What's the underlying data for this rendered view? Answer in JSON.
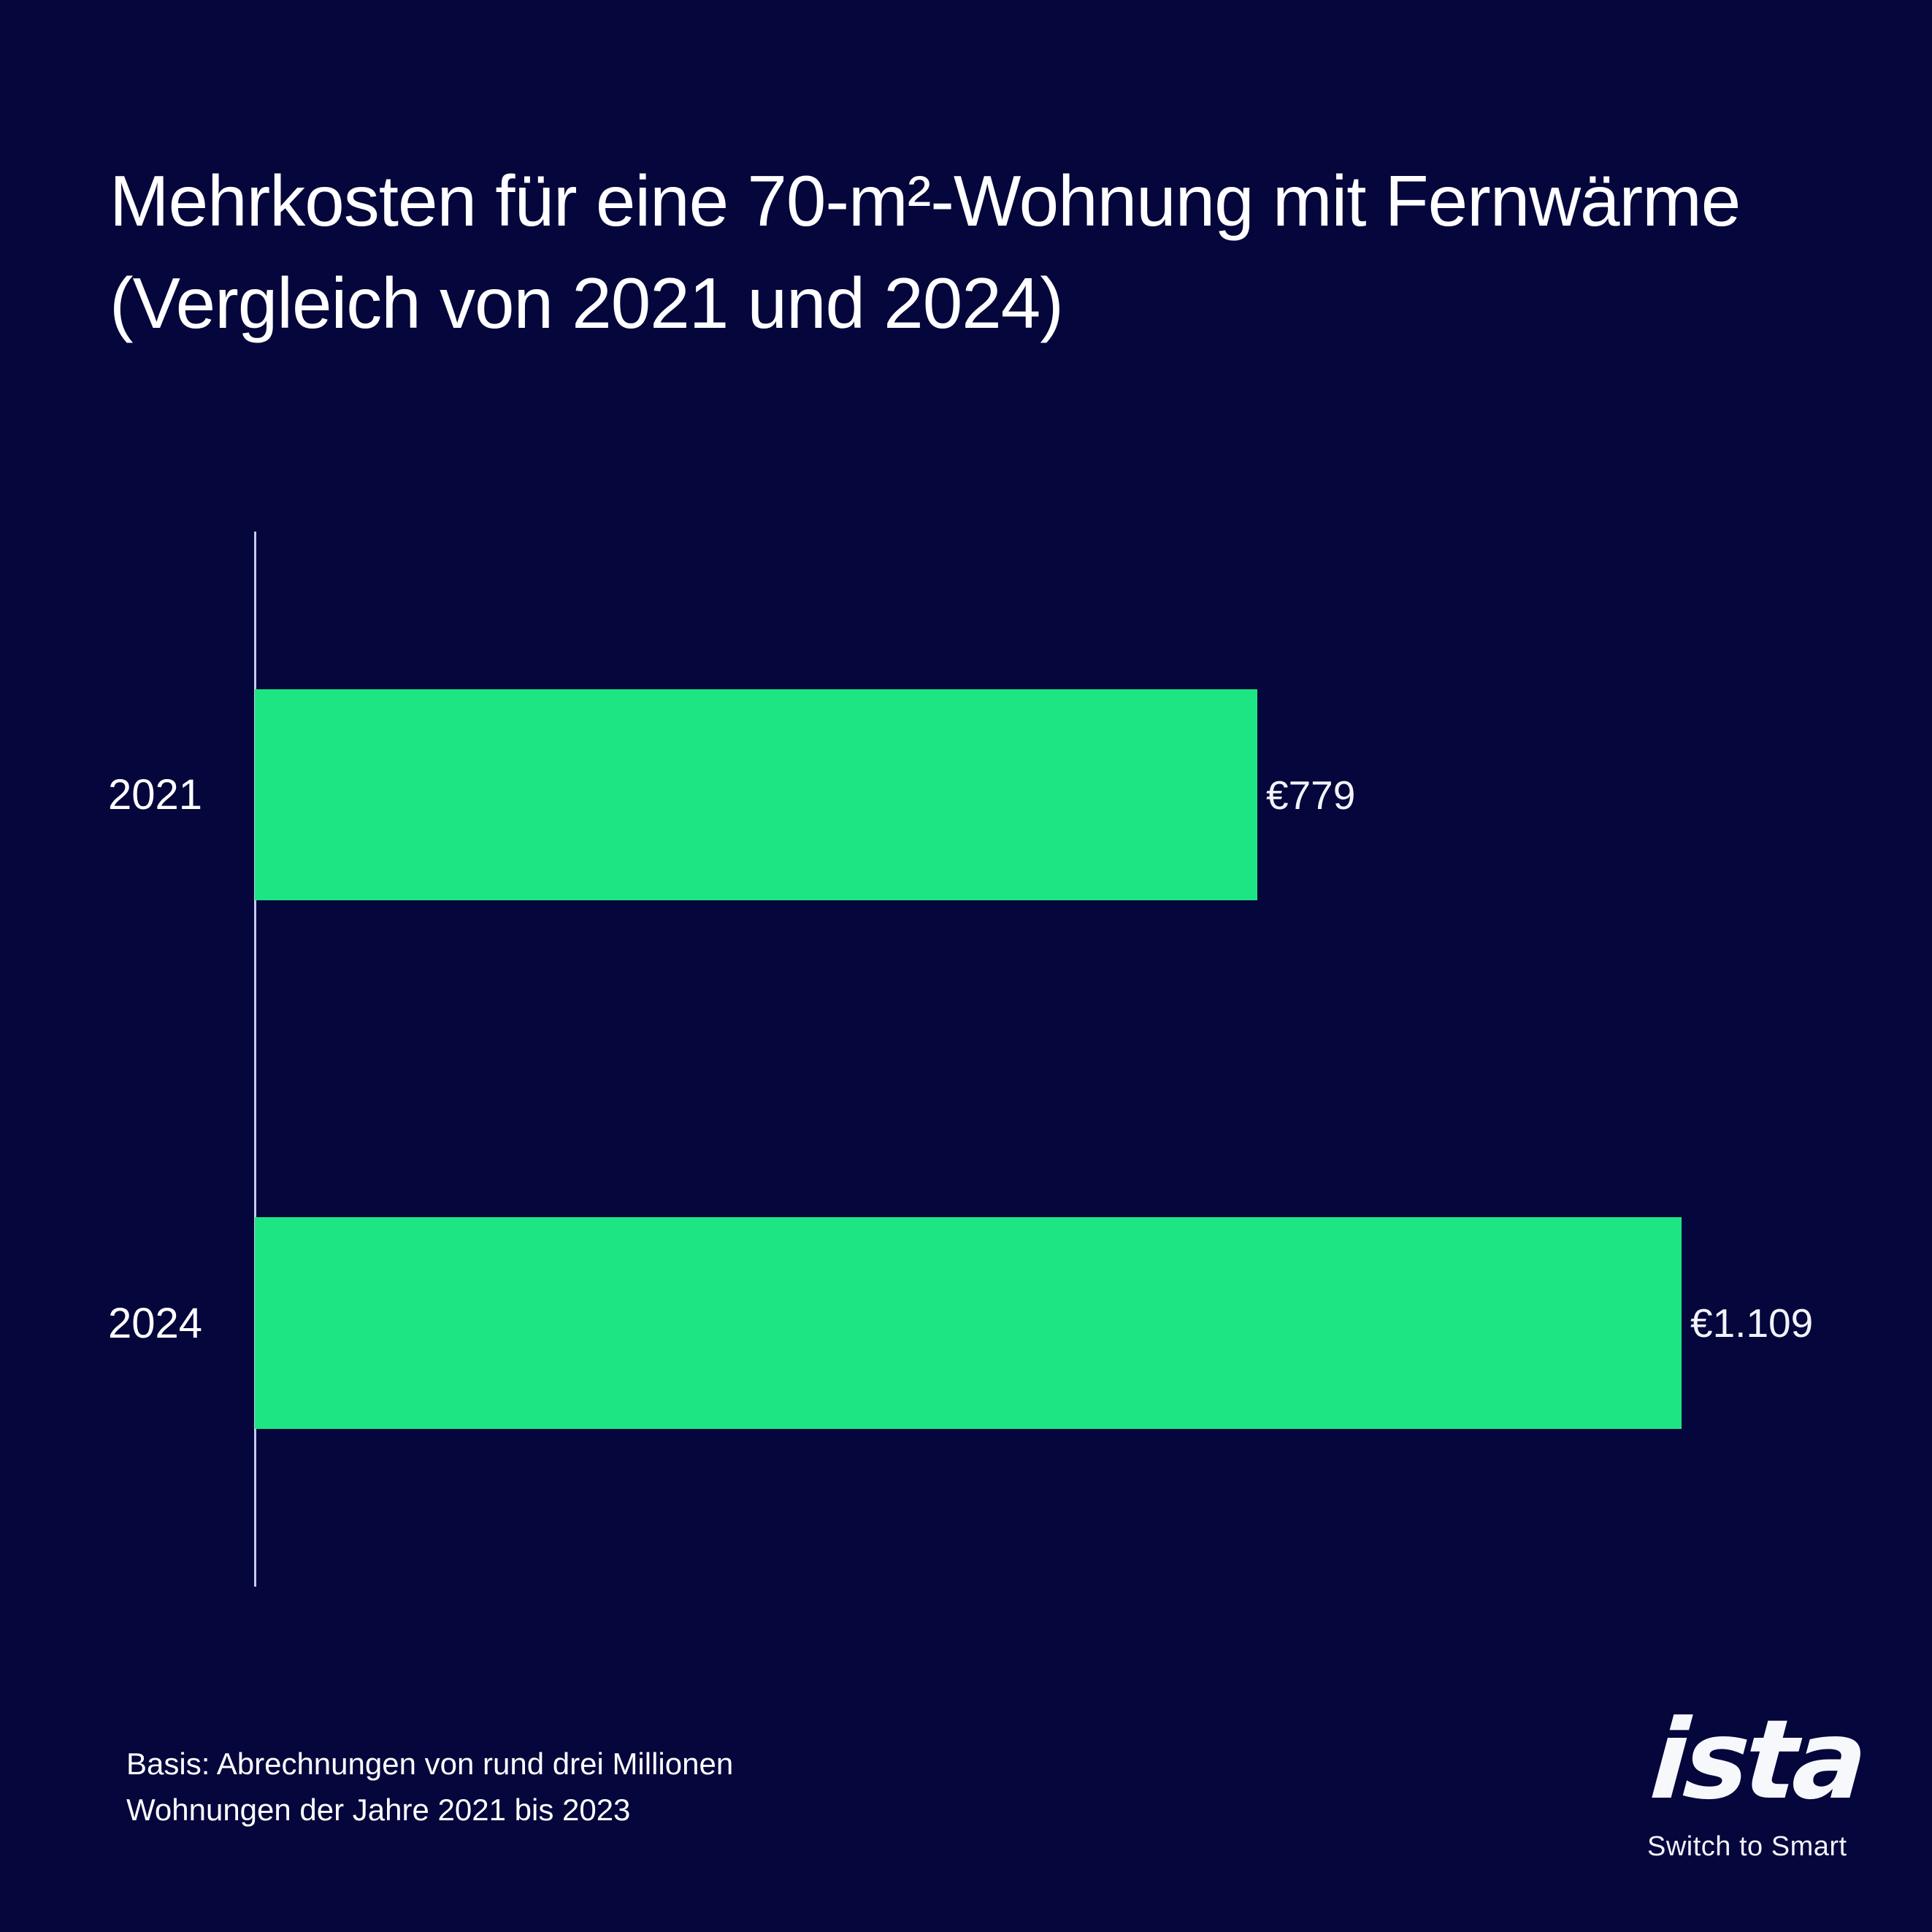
{
  "header": {
    "title_line1": "Mehrkosten für eine 70-m²-Wohnung mit Fernwärme",
    "title_line2": "(Vergleich von 2021 und 2024)"
  },
  "chart_data": {
    "type": "bar",
    "orientation": "horizontal",
    "title": "Mehrkosten für eine 70-m²-Wohnung mit Fernwärme (Vergleich von 2021 und 2024)",
    "categories": [
      "2021",
      "2024"
    ],
    "values": [
      779,
      1109
    ],
    "value_labels": [
      "€779",
      "€1.109"
    ],
    "unit": "EUR",
    "xlabel": "",
    "ylabel": "",
    "xlim": [
      0,
      1109
    ],
    "grid": false,
    "legend": false,
    "bar_color": "#1EE583",
    "background_color": "#05063C",
    "axis_line_color": "#C5CAEF",
    "source_note": "Basis: Abrechnungen von rund drei Millionen Wohnungen der Jahre 2021 bis 2023"
  },
  "footer": {
    "note_line1": "Basis: Abrechnungen von rund drei Millionen",
    "note_line2": "Wohnungen der Jahre 2021 bis 2023"
  },
  "logo": {
    "wordmark": "ista",
    "tagline": "Switch to Smart"
  }
}
